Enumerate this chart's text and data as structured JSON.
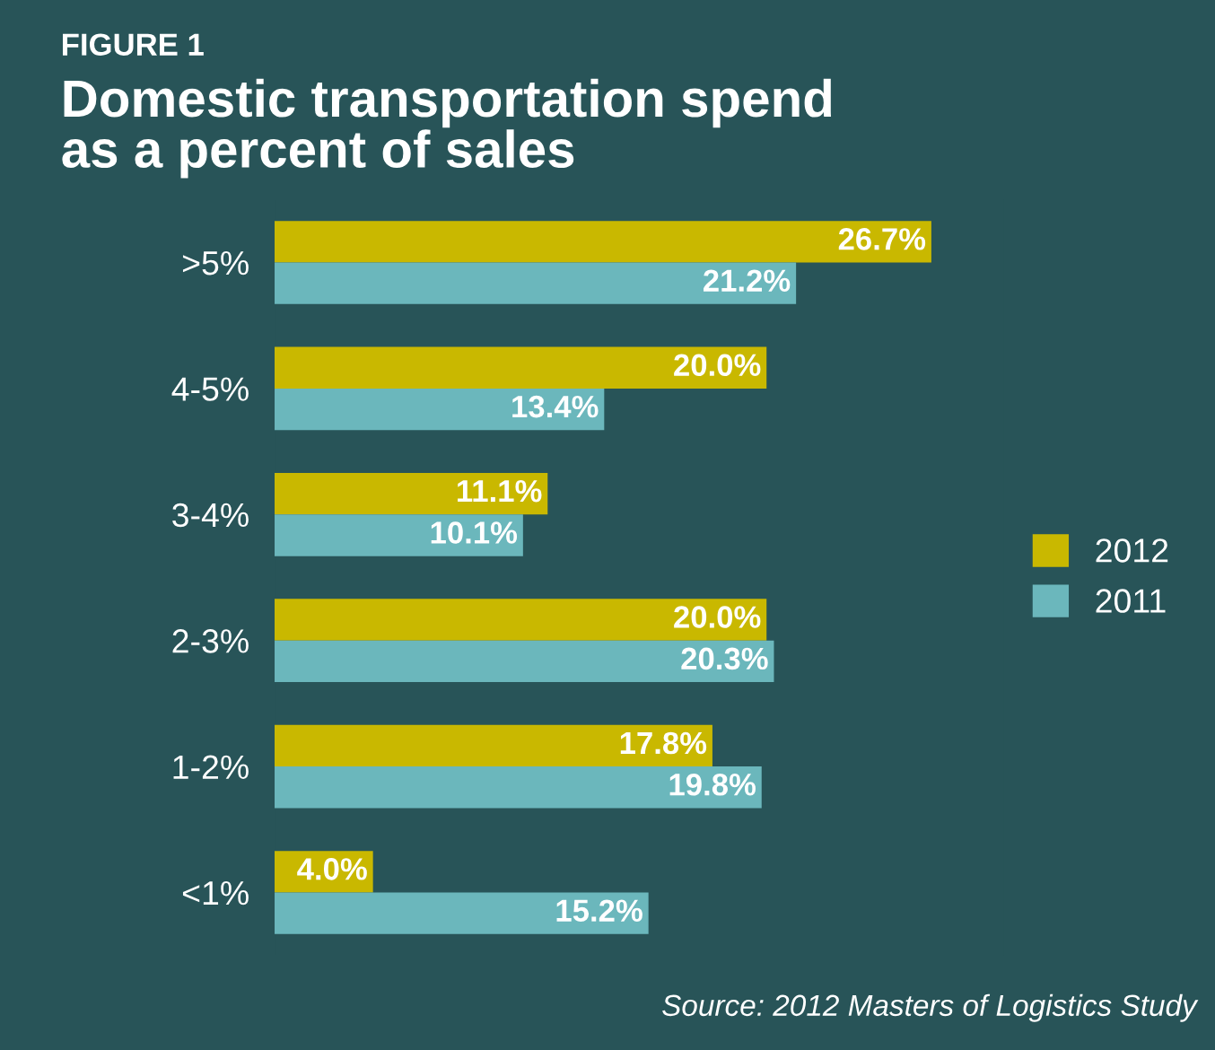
{
  "chart_data": {
    "type": "bar",
    "orientation": "horizontal",
    "subtitle": "FIGURE 1",
    "title": "Domestic transportation spend\nas a percent of sales",
    "categories": [
      ">5%",
      "4-5%",
      "3-4%",
      "2-3%",
      "1-2%",
      "<1%"
    ],
    "series": [
      {
        "name": "2012",
        "color": "#c9b800",
        "values": [
          26.7,
          20.0,
          11.1,
          20.0,
          17.8,
          4.0
        ],
        "value_labels": [
          "26.7%",
          "20.0%",
          "11.1%",
          "20.0%",
          "17.8%",
          "4.0%"
        ]
      },
      {
        "name": "2011",
        "color": "#6bb7bc",
        "values": [
          21.2,
          13.4,
          10.1,
          20.3,
          19.8,
          15.2
        ],
        "value_labels": [
          "21.2%",
          "13.4%",
          "10.1%",
          "20.3%",
          "19.8%",
          "15.2%"
        ]
      }
    ],
    "legend": "right",
    "grid": false,
    "annotations": [
      "Source: 2012 Masters of Logistics Study"
    ]
  }
}
